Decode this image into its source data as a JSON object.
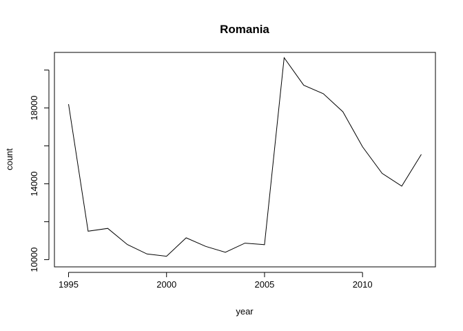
{
  "chart_data": {
    "type": "line",
    "title": "Romania",
    "xlabel": "year",
    "ylabel": "count",
    "x": [
      1995,
      1996,
      1997,
      1998,
      1999,
      2000,
      2001,
      2002,
      2003,
      2004,
      2005,
      2006,
      2007,
      2008,
      2009,
      2010,
      2011,
      2012,
      2013
    ],
    "y": [
      18200,
      11500,
      11650,
      10800,
      10300,
      10180,
      11150,
      10700,
      10390,
      10870,
      10790,
      20650,
      19200,
      18750,
      17800,
      15950,
      14550,
      13880,
      15550
    ],
    "xlim": [
      1994.28,
      2013.72
    ],
    "ylim": [
      9620,
      20930
    ],
    "x_ticks": [
      1995,
      2000,
      2005,
      2010
    ],
    "x_tick_labels": [
      "1995",
      "2000",
      "2005",
      "2010"
    ],
    "y_ticks": [
      10000,
      14000,
      18000
    ],
    "y_tick_labels": [
      "10000",
      "14000",
      "18000"
    ],
    "y_minor_ticks": [
      12000,
      16000,
      20000
    ],
    "grid": false,
    "line_color": "#000000"
  }
}
